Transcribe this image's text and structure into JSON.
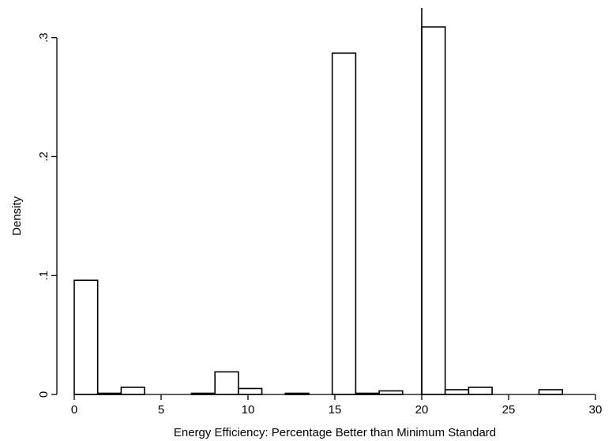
{
  "chart_data": {
    "type": "bar",
    "xlabel": "Energy Efficiency: Percentage Better than Minimum Standard",
    "ylabel": "Density",
    "xlim": [
      -1,
      31
    ],
    "ylim": [
      0,
      0.325
    ],
    "xticks": [
      {
        "value": 0,
        "label": "0"
      },
      {
        "value": 5,
        "label": "5"
      },
      {
        "value": 10,
        "label": "10"
      },
      {
        "value": 15,
        "label": "15"
      },
      {
        "value": 20,
        "label": "20"
      },
      {
        "value": 25,
        "label": "25"
      },
      {
        "value": 30,
        "label": "30"
      }
    ],
    "yticks": [
      {
        "value": 0,
        "label": "0"
      },
      {
        "value": 0.1,
        "label": ".1"
      },
      {
        "value": 0.2,
        "label": ".2"
      },
      {
        "value": 0.3,
        "label": ".3"
      }
    ],
    "vertical_line_at_x": 20,
    "grid": false,
    "bins": [
      {
        "x0": 0.0,
        "x1": 1.35,
        "density": 0.096
      },
      {
        "x0": 1.35,
        "x1": 2.7,
        "density": 0.001
      },
      {
        "x0": 2.7,
        "x1": 4.05,
        "density": 0.006
      },
      {
        "x0": 6.75,
        "x1": 8.1,
        "density": 0.001
      },
      {
        "x0": 8.1,
        "x1": 9.45,
        "density": 0.019
      },
      {
        "x0": 9.45,
        "x1": 10.8,
        "density": 0.005
      },
      {
        "x0": 12.15,
        "x1": 13.5,
        "density": 0.001
      },
      {
        "x0": 14.85,
        "x1": 16.2,
        "density": 0.287
      },
      {
        "x0": 16.2,
        "x1": 17.55,
        "density": 0.001
      },
      {
        "x0": 17.55,
        "x1": 18.9,
        "density": 0.003
      },
      {
        "x0": 20.0,
        "x1": 21.35,
        "density": 0.309
      },
      {
        "x0": 21.35,
        "x1": 22.7,
        "density": 0.004
      },
      {
        "x0": 22.7,
        "x1": 24.05,
        "density": 0.006
      },
      {
        "x0": 26.75,
        "x1": 28.1,
        "density": 0.004
      }
    ]
  }
}
